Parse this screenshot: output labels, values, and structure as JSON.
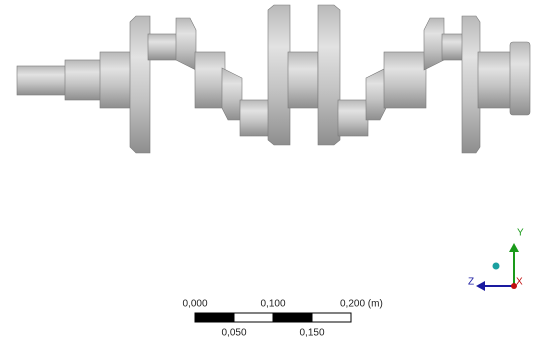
{
  "scale_bar": {
    "top_labels": [
      "0,000",
      "0,100",
      "0,200 (m)"
    ],
    "bottom_labels": [
      "0,050",
      "0,150"
    ]
  },
  "triad": {
    "y": "Y",
    "z": "Z",
    "x": "X"
  }
}
